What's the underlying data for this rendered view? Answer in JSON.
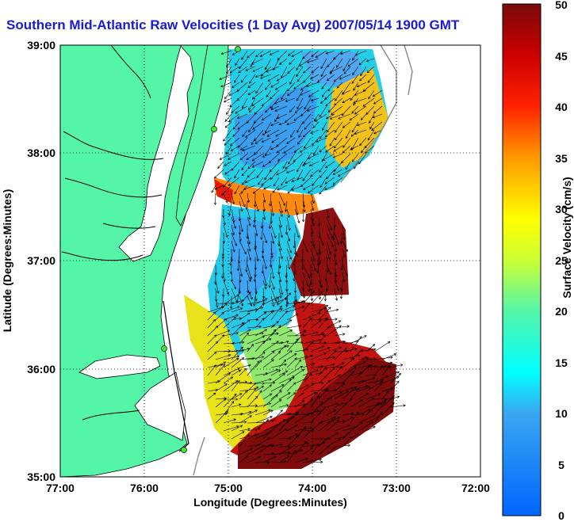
{
  "title": "Southern Mid-Atlantic Raw Velocities (1 Day Avg) 2007/05/14 1900 GMT",
  "x_axis": {
    "label": "Longitude (Degrees:Minutes)",
    "ticks": [
      "77:00",
      "76:00",
      "75:00",
      "74:00",
      "73:00",
      "72:00"
    ]
  },
  "y_axis": {
    "label": "Latitude (Degrees:Minutes)",
    "ticks": [
      "39:00",
      "38:00",
      "37:00",
      "36:00",
      "35:00"
    ]
  },
  "colorbar": {
    "label": "Surface Velocity (cm/s)",
    "min": 0,
    "max": 50,
    "ticks": [
      "50",
      "45",
      "40",
      "35",
      "30",
      "25",
      "20",
      "15",
      "10",
      "5",
      "0"
    ]
  },
  "map": {
    "lon_range": [
      -77,
      -72
    ],
    "lat_range": [
      35,
      39
    ],
    "land_color": "#55f5a8",
    "grid": "dotted"
  }
}
